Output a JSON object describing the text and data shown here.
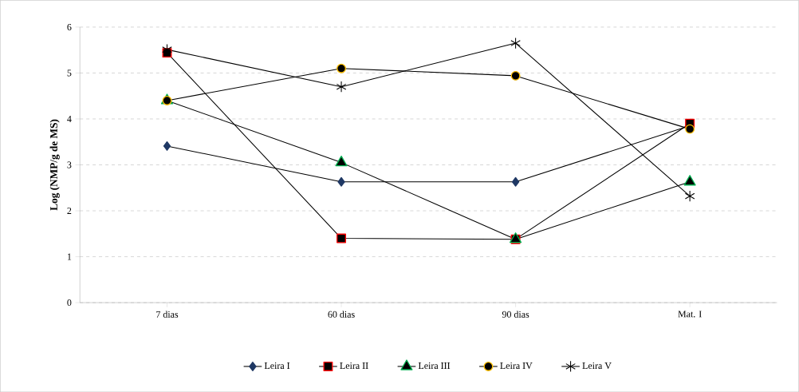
{
  "chart_data": {
    "type": "line",
    "ylabel": "Log (NMP/g de MS)",
    "categories": [
      "7 dias",
      "60 dias",
      "90 dias",
      "Mat. I"
    ],
    "ylim": [
      0,
      6
    ],
    "yticks": [
      0,
      1,
      2,
      3,
      4,
      5,
      6
    ],
    "grid": "y",
    "legend": "bottom",
    "line_style": "solid",
    "series": [
      {
        "name": "Leira I",
        "color": "#1f3864",
        "marker": "diamond",
        "values": [
          3.41,
          2.63,
          2.63,
          3.85
        ]
      },
      {
        "name": "Leira II",
        "color": "#ff0000",
        "marker": "square",
        "values": [
          5.44,
          1.4,
          1.38,
          3.9
        ]
      },
      {
        "name": "Leira III",
        "color": "#00b050",
        "marker": "triangle",
        "values": [
          4.4,
          3.05,
          1.38,
          2.63
        ]
      },
      {
        "name": "Leira IV",
        "color": "#ffc000",
        "marker": "circle",
        "values": [
          4.4,
          5.1,
          4.94,
          3.78
        ]
      },
      {
        "name": "Leira V",
        "color": "#000000",
        "marker": "cross",
        "values": [
          5.51,
          4.7,
          5.65,
          2.32
        ]
      }
    ]
  }
}
